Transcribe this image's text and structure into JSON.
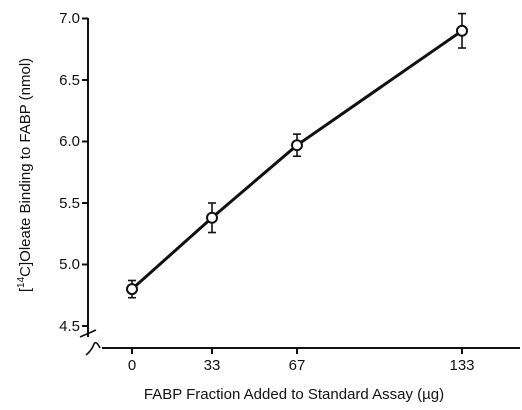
{
  "chart_data": {
    "type": "line",
    "xlabel": "FABP Fraction Added to Standard Assay (µg)",
    "ylabel_pre": "[",
    "ylabel_sup": "14",
    "ylabel_post": "C]Oleate Binding to FABP (nmol)",
    "categories": [
      "0",
      "33",
      "67",
      "133"
    ],
    "x": [
      0,
      33,
      67,
      133
    ],
    "y_ticks": [
      "4.5",
      "5.0",
      "5.5",
      "6.0",
      "6.5",
      "7.0"
    ],
    "ylim": [
      4.5,
      7.0
    ],
    "axis_breaks": true,
    "series": [
      {
        "values": [
          4.8,
          5.38,
          5.97,
          6.9
        ],
        "error": [
          0.07,
          0.12,
          0.09,
          0.14
        ]
      }
    ]
  }
}
